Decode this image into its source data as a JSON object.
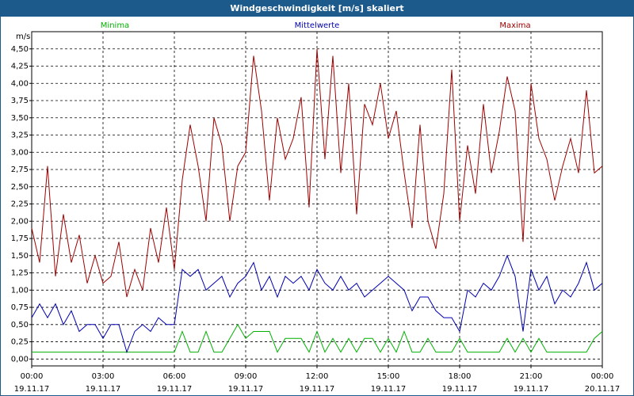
{
  "chart_data": {
    "type": "line",
    "title": "Windgeschwindigkeit [m/s] skaliert",
    "ylabel": "m/s",
    "x": [
      0,
      20,
      40,
      60,
      80,
      100,
      120,
      140,
      160,
      180,
      200,
      220,
      240,
      260,
      280,
      300,
      320,
      340,
      360,
      380,
      400,
      420,
      440,
      460,
      480,
      500,
      520,
      540,
      560,
      580,
      600,
      620,
      640,
      660,
      680,
      700,
      720,
      740,
      760,
      780,
      800,
      820,
      840,
      860,
      880,
      900,
      920,
      940,
      960,
      980,
      1000,
      1020,
      1040,
      1060,
      1080,
      1100,
      1120,
      1140,
      1160,
      1180,
      1200,
      1220,
      1240,
      1260,
      1280,
      1300,
      1320,
      1340,
      1360,
      1380,
      1400,
      1420,
      1440
    ],
    "xlim": [
      0,
      1440
    ],
    "xticks": [
      {
        "value": 0,
        "label": "00:00",
        "date": "19.11.17"
      },
      {
        "value": 180,
        "label": "03:00",
        "date": "19.11.17"
      },
      {
        "value": 360,
        "label": "06:00",
        "date": "19.11.17"
      },
      {
        "value": 540,
        "label": "09:00",
        "date": "19.11.17"
      },
      {
        "value": 720,
        "label": "12:00",
        "date": "19.11.17"
      },
      {
        "value": 900,
        "label": "15:00",
        "date": "19.11.17"
      },
      {
        "value": 1080,
        "label": "18:00",
        "date": "19.11.17"
      },
      {
        "value": 1260,
        "label": "21:00",
        "date": "19.11.17"
      },
      {
        "value": 1440,
        "label": "00:00",
        "date": "20.11.17"
      }
    ],
    "ylim": [
      -0.1,
      4.75
    ],
    "yticks": [
      {
        "value": 0,
        "label": "0,00"
      },
      {
        "value": 0.25,
        "label": "0,25"
      },
      {
        "value": 0.5,
        "label": "0,50"
      },
      {
        "value": 0.75,
        "label": "0,75"
      },
      {
        "value": 1,
        "label": "1,00"
      },
      {
        "value": 1.25,
        "label": "1,25"
      },
      {
        "value": 1.5,
        "label": "1,50"
      },
      {
        "value": 1.75,
        "label": "1,75"
      },
      {
        "value": 2,
        "label": "2,00"
      },
      {
        "value": 2.25,
        "label": "2,25"
      },
      {
        "value": 2.5,
        "label": "2,50"
      },
      {
        "value": 2.75,
        "label": "2,75"
      },
      {
        "value": 3,
        "label": "3,00"
      },
      {
        "value": 3.25,
        "label": "3,25"
      },
      {
        "value": 3.5,
        "label": "3,50"
      },
      {
        "value": 3.75,
        "label": "3,75"
      },
      {
        "value": 4,
        "label": "4,00"
      },
      {
        "value": 4.25,
        "label": "4,25"
      },
      {
        "value": 4.5,
        "label": "4,50"
      }
    ],
    "grid": true,
    "series": [
      {
        "name": "Minima",
        "color": "#00b000",
        "values": [
          0.1,
          0.1,
          0.1,
          0.1,
          0.1,
          0.1,
          0.1,
          0.1,
          0.1,
          0.1,
          0.1,
          0.1,
          0.1,
          0.1,
          0.1,
          0.1,
          0.1,
          0.1,
          0.1,
          0.4,
          0.1,
          0.1,
          0.4,
          0.1,
          0.1,
          0.3,
          0.5,
          0.3,
          0.4,
          0.4,
          0.4,
          0.1,
          0.3,
          0.3,
          0.3,
          0.1,
          0.4,
          0.1,
          0.3,
          0.1,
          0.3,
          0.1,
          0.3,
          0.3,
          0.1,
          0.3,
          0.1,
          0.4,
          0.1,
          0.1,
          0.3,
          0.1,
          0.1,
          0.1,
          0.3,
          0.1,
          0.1,
          0.1,
          0.1,
          0.1,
          0.3,
          0.1,
          0.3,
          0.1,
          0.3,
          0.1,
          0.1,
          0.1,
          0.1,
          0.1,
          0.1,
          0.3,
          0.4
        ]
      },
      {
        "name": "Mittelwerte",
        "color": "#0000b0",
        "values": [
          0.6,
          0.8,
          0.6,
          0.8,
          0.5,
          0.7,
          0.4,
          0.5,
          0.5,
          0.3,
          0.5,
          0.5,
          0.1,
          0.4,
          0.5,
          0.4,
          0.6,
          0.5,
          0.5,
          1.3,
          1.2,
          1.3,
          1.0,
          1.1,
          1.2,
          0.9,
          1.1,
          1.2,
          1.4,
          1.0,
          1.2,
          0.9,
          1.2,
          1.1,
          1.2,
          1.0,
          1.3,
          1.1,
          1.0,
          1.2,
          1.0,
          1.1,
          0.9,
          1.0,
          1.1,
          1.2,
          1.1,
          1.0,
          0.7,
          0.9,
          0.9,
          0.7,
          0.6,
          0.6,
          0.4,
          1.0,
          0.9,
          1.1,
          1.0,
          1.2,
          1.5,
          1.2,
          0.4,
          1.3,
          1.0,
          1.2,
          0.8,
          1.0,
          0.9,
          1.1,
          1.4,
          1.0,
          1.1
        ]
      },
      {
        "name": "Maxima",
        "color": "#a00000",
        "values": [
          1.9,
          1.4,
          2.8,
          1.2,
          2.1,
          1.4,
          1.8,
          1.1,
          1.5,
          1.1,
          1.2,
          1.7,
          0.9,
          1.3,
          1.0,
          1.9,
          1.4,
          2.2,
          1.3,
          2.6,
          3.4,
          2.8,
          2.0,
          3.5,
          3.1,
          2.0,
          2.8,
          3.0,
          4.4,
          3.6,
          2.3,
          3.5,
          2.9,
          3.2,
          3.8,
          2.2,
          4.5,
          2.9,
          4.4,
          2.7,
          4.0,
          2.1,
          3.7,
          3.4,
          4.0,
          3.2,
          3.6,
          2.7,
          1.9,
          3.4,
          2.0,
          1.6,
          2.4,
          4.2,
          2.0,
          3.1,
          2.4,
          3.7,
          2.7,
          3.3,
          4.1,
          3.6,
          1.7,
          4.0,
          3.2,
          2.9,
          2.3,
          2.8,
          3.2,
          2.7,
          3.9,
          2.7,
          2.8
        ]
      }
    ]
  }
}
